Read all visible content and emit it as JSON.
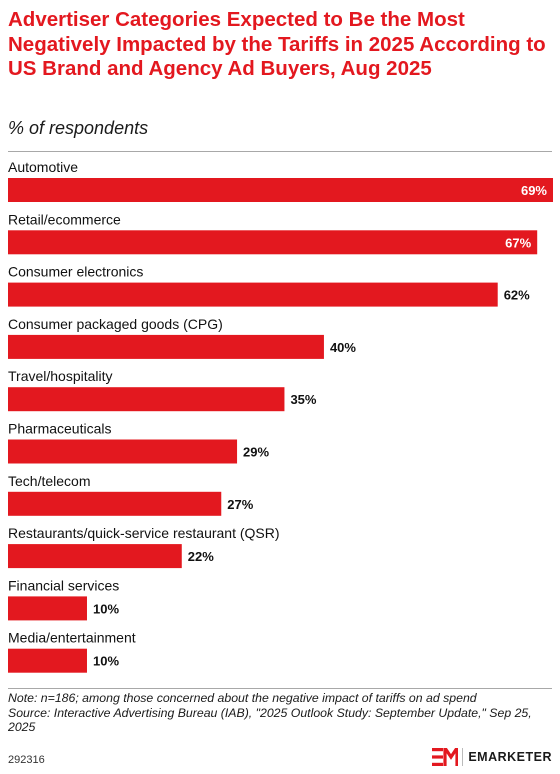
{
  "header": {
    "title": "Advertiser Categories Expected to Be the Most Negatively Impacted by the Tariffs in 2025 According to US Brand and Agency Ad Buyers, Aug 2025",
    "subtitle": "% of respondents"
  },
  "chart_data": {
    "type": "bar",
    "orientation": "horizontal",
    "categories": [
      "Automotive",
      "Retail/ecommerce",
      "Consumer electronics",
      "Consumer packaged goods (CPG)",
      "Travel/hospitality",
      "Pharmaceuticals",
      "Tech/telecom",
      "Restaurants/quick-service restaurant (QSR)",
      "Financial services",
      "Media/entertainment"
    ],
    "values": [
      69,
      67,
      62,
      40,
      35,
      29,
      27,
      22,
      10,
      10
    ],
    "value_labels": [
      "69%",
      "67%",
      "62%",
      "40%",
      "35%",
      "29%",
      "27%",
      "22%",
      "10%",
      "10%"
    ],
    "xlim": [
      0,
      69
    ],
    "bar_color": "#e3181f",
    "grid": false,
    "legend": "none"
  },
  "footer": {
    "note": "Note: n=186; among those concerned about the negative impact of tariffs on ad spend",
    "source": "Source: Interactive Advertising Bureau (IAB), \"2025 Outlook Study: September Update,\" Sep 25, 2025",
    "chart_id": "292316",
    "brand": "EMARKETER"
  },
  "colors": {
    "accent": "#e3181f",
    "text": "#1a1a1a"
  }
}
